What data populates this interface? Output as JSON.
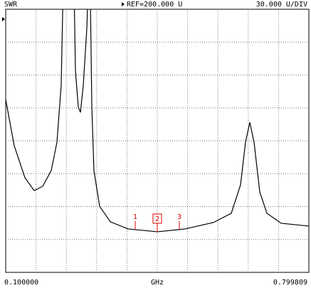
{
  "chart_data": {
    "type": "line",
    "title": "SWR",
    "reference": "REF=200.000 U",
    "scale": "30.000 U/DIV",
    "x_start_label": "0.100000",
    "x_unit": "GHz",
    "x_stop_label": "0.799809",
    "xlim": [
      0.1,
      0.799809
    ],
    "ylim": [
      -40,
      200
    ],
    "x_divisions": 10,
    "y_divisions": 8,
    "grid": true,
    "series": [
      {
        "color": "#000000",
        "x": [
          0.1,
          0.1197,
          0.1444,
          0.1657,
          0.1854,
          0.2051,
          0.2183,
          0.2281,
          0.2347,
          0.2561,
          0.261,
          0.2676,
          0.2725,
          0.2791,
          0.2873,
          0.2938,
          0.2988,
          0.3037,
          0.3168,
          0.3415,
          0.3825,
          0.4499,
          0.514,
          0.5797,
          0.6207,
          0.6421,
          0.6536,
          0.6635,
          0.6733,
          0.6865,
          0.7029,
          0.7358,
          0.799809
        ],
        "values": [
          117.6,
          75.5,
          46.3,
          34.6,
          38.5,
          52.8,
          78.7,
          130.6,
          260,
          260,
          143.6,
          111.1,
          105.9,
          130.6,
          182.5,
          260,
          111.1,
          52.8,
          20.3,
          6.1,
          -0.4,
          -3.0,
          -0.4,
          5.5,
          13.9,
          39.8,
          78.7,
          96.9,
          78.7,
          33.3,
          13.9,
          4.8,
          2.2
        ]
      }
    ],
    "markers": [
      {
        "label": "1",
        "x": 0.399,
        "active": false
      },
      {
        "label": "2",
        "x": 0.4499,
        "active": true
      },
      {
        "label": "3",
        "x": 0.5008,
        "active": false
      }
    ],
    "marker_color": "#e00000"
  }
}
